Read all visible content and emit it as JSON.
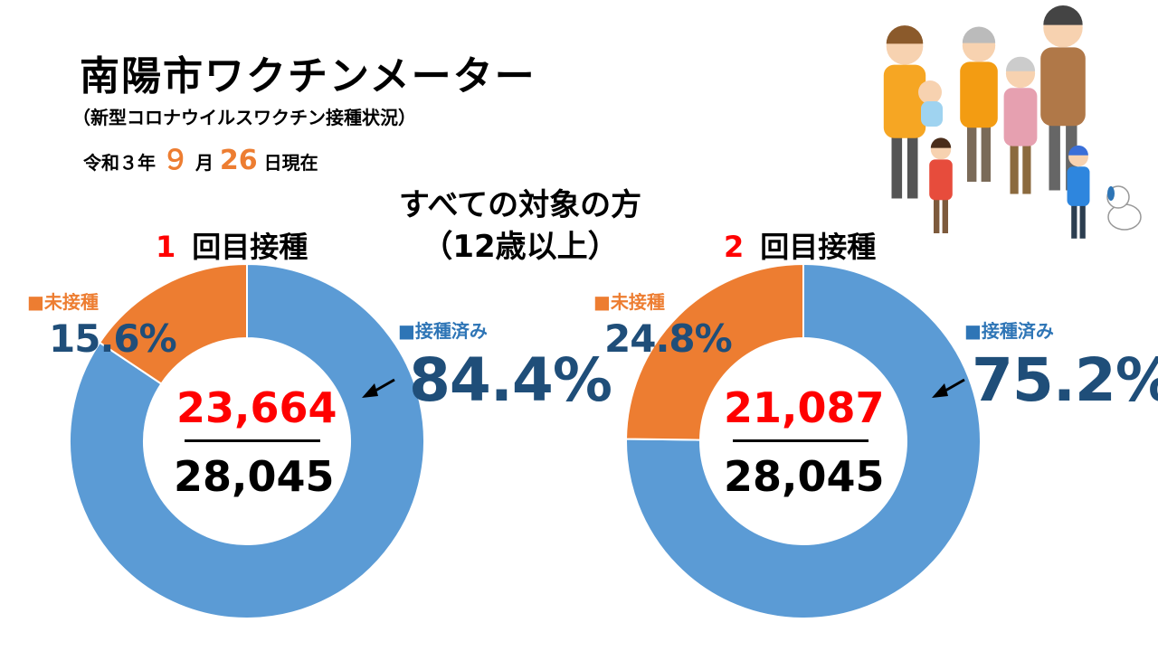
{
  "header": {
    "title": "南陽市ワクチンメーター",
    "subtitle": "（新型コロナウイルスワクチン接種状況）",
    "date": {
      "prefix": "令和３年",
      "month": "９",
      "month_suffix": "月",
      "day": "26",
      "day_suffix": "日現在"
    }
  },
  "center_heading": {
    "line1": "すべての対象の方",
    "line2": "（12歳以上）"
  },
  "legend_labels": {
    "unvaccinated": "■未接種",
    "vaccinated": "■接種済み"
  },
  "colors": {
    "vaccinated": "#5b9bd5",
    "unvaccinated": "#ed7d31",
    "accent_red": "#ff0000",
    "pct_text": "#1f4e79"
  },
  "illustration": "family-icon",
  "chart_data": [
    {
      "type": "pie",
      "style": "donut",
      "dose_number": "1",
      "dose_title": "回目接種",
      "categories": [
        "接種済み",
        "未接種"
      ],
      "values": [
        84.4,
        15.6
      ],
      "value_labels": [
        "84.4%",
        "15.6%"
      ],
      "count_vaccinated": "23,664",
      "count_total": "28,045"
    },
    {
      "type": "pie",
      "style": "donut",
      "dose_number": "2",
      "dose_title": "回目接種",
      "categories": [
        "接種済み",
        "未接種"
      ],
      "values": [
        75.2,
        24.8
      ],
      "value_labels": [
        "75.2%",
        "24.8%"
      ],
      "count_vaccinated": "21,087",
      "count_total": "28,045"
    }
  ]
}
